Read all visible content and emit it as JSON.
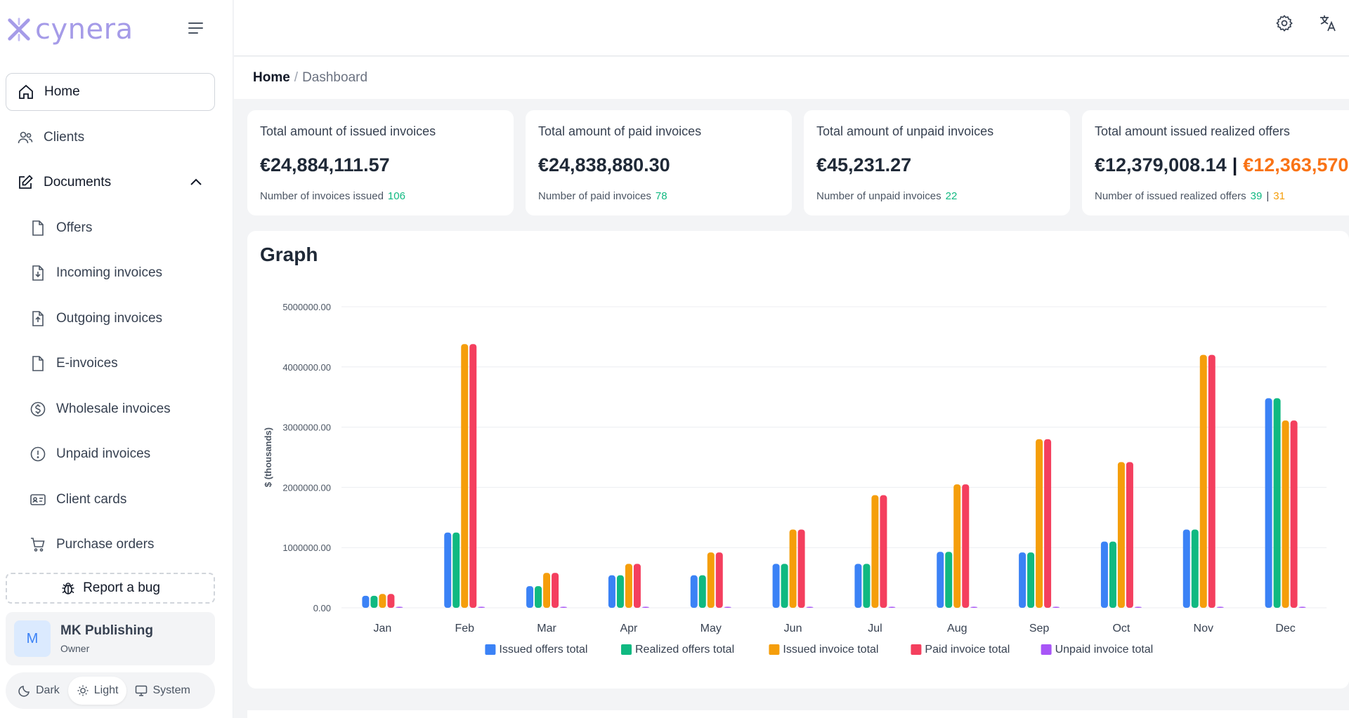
{
  "brand": {
    "name": "cynera"
  },
  "sidebar": {
    "items": [
      {
        "label": "Home",
        "icon": "home-icon"
      },
      {
        "label": "Clients",
        "icon": "users-icon"
      },
      {
        "label": "Documents",
        "icon": "edit-icon"
      },
      {
        "label": "Offers",
        "icon": "file-icon"
      },
      {
        "label": "Incoming invoices",
        "icon": "file-download-icon"
      },
      {
        "label": "Outgoing invoices",
        "icon": "file-upload-icon"
      },
      {
        "label": "E-invoices",
        "icon": "file-icon"
      },
      {
        "label": "Wholesale invoices",
        "icon": "dollar-circle-icon"
      },
      {
        "label": "Unpaid invoices",
        "icon": "alert-circle-icon"
      },
      {
        "label": "Client cards",
        "icon": "id-card-icon"
      },
      {
        "label": "Purchase orders",
        "icon": "cart-icon"
      }
    ],
    "report_bug": "Report a bug",
    "user": {
      "initial": "M",
      "name": "MK Publishing",
      "role": "Owner"
    },
    "theme": {
      "dark": "Dark",
      "light": "Light",
      "system": "System",
      "selected": "Light"
    }
  },
  "breadcrumb": {
    "home": "Home",
    "separator": "/",
    "current": "Dashboard"
  },
  "stats": [
    {
      "title": "Total amount of issued invoices",
      "amount": "€24,884,111.57",
      "sub_label": "Number of invoices issued",
      "count": "106"
    },
    {
      "title": "Total amount of paid invoices",
      "amount": "€24,838,880.30",
      "sub_label": "Number of paid invoices",
      "count": "78"
    },
    {
      "title": "Total amount of unpaid invoices",
      "amount": "€45,231.27",
      "sub_label": "Number of unpaid invoices",
      "count": "22"
    },
    {
      "title": "Total amount issued realized offers",
      "amount": "€12,379,008.14",
      "amount_sep": "|",
      "amount_alt": "€12,363,570",
      "sub_label": "Number of issued realized offers",
      "count": "39",
      "count_sep": "|",
      "count_alt": "31"
    }
  ],
  "colors": {
    "issued_offers": "#3b82f6",
    "realized_offers": "#10b981",
    "issued_invoice": "#f59e0b",
    "paid_invoice": "#f43f5e",
    "unpaid_invoice": "#a855f7",
    "accent_orange": "#f97316"
  },
  "graph": {
    "title": "Graph"
  },
  "chart_data": {
    "type": "bar",
    "title": "Graph",
    "xlabel": "",
    "ylabel": "$ (thousands)",
    "ylim": [
      0,
      5000000
    ],
    "yticks": [
      "0.00",
      "1000000.00",
      "2000000.00",
      "3000000.00",
      "4000000.00",
      "5000000.00"
    ],
    "categories": [
      "Jan",
      "Feb",
      "Mar",
      "Apr",
      "May",
      "Jun",
      "Jul",
      "Aug",
      "Sep",
      "Oct",
      "Nov",
      "Dec"
    ],
    "legend_position": "bottom",
    "series": [
      {
        "name": "Issued offers total",
        "color": "#3b82f6",
        "values": [
          200000,
          1250000,
          360000,
          540000,
          540000,
          730000,
          730000,
          930000,
          920000,
          1100000,
          1300000,
          3480000
        ]
      },
      {
        "name": "Realized offers total",
        "color": "#10b981",
        "values": [
          200000,
          1250000,
          360000,
          540000,
          540000,
          730000,
          730000,
          930000,
          920000,
          1100000,
          1300000,
          3480000
        ]
      },
      {
        "name": "Issued invoice total",
        "color": "#f59e0b",
        "values": [
          230000,
          4380000,
          580000,
          730000,
          920000,
          1300000,
          1870000,
          2050000,
          2800000,
          2420000,
          4200000,
          3110000
        ]
      },
      {
        "name": "Paid invoice total",
        "color": "#f43f5e",
        "values": [
          230000,
          4380000,
          580000,
          730000,
          920000,
          1300000,
          1870000,
          2050000,
          2800000,
          2420000,
          4200000,
          3110000
        ]
      },
      {
        "name": "Unpaid invoice total",
        "color": "#a855f7",
        "values": [
          5000,
          5000,
          5000,
          5000,
          5000,
          5000,
          5000,
          5000,
          5000,
          5000,
          5000,
          5000
        ]
      }
    ]
  }
}
